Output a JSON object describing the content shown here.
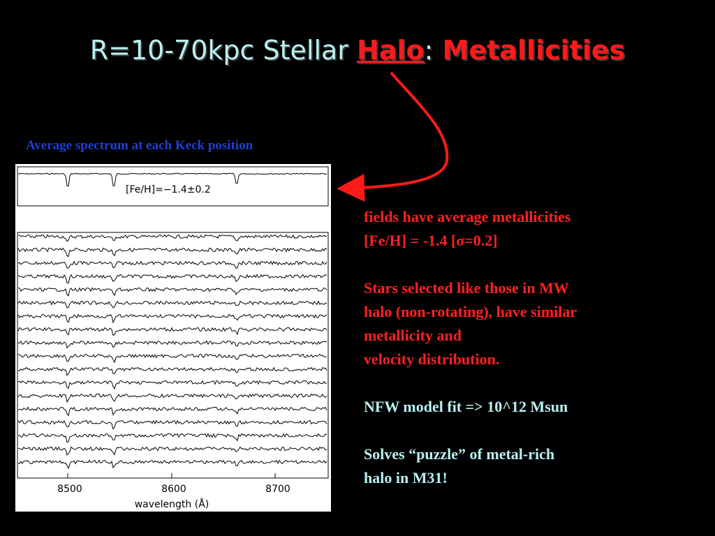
{
  "title": {
    "part1": "R=10-70kpc Stellar ",
    "halo": "Halo",
    "colon": ":",
    "part2": " Metallicities"
  },
  "caption": "Average spectrum at each Keck position",
  "figure": {
    "top_label": "[Fe/H]=−1.4±0.2",
    "xticks": [
      "8500",
      "8600",
      "8700"
    ],
    "xlabel": "wavelength (Å)"
  },
  "notes": {
    "p1_line1": "fields have average metallicities",
    "p1_line2": "[Fe/H] = -1.4 [σ=0.2]",
    "p2_line1": "Stars selected like those in MW",
    "p2_line2": "halo (non-rotating), have similar",
    "p2_line3": "metallicity and",
    "p2_line4": "velocity distribution.",
    "p3": "NFW model fit => 10^12 Msun",
    "p4_line1": "Solves “puzzle” of metal-rich",
    "p4_line2": "halo in M31!"
  },
  "colors": {
    "background": "#000000",
    "title_cyan": "#b9f0f0",
    "accent_red": "#ff1a1a",
    "caption_blue": "#1f3fd6"
  }
}
